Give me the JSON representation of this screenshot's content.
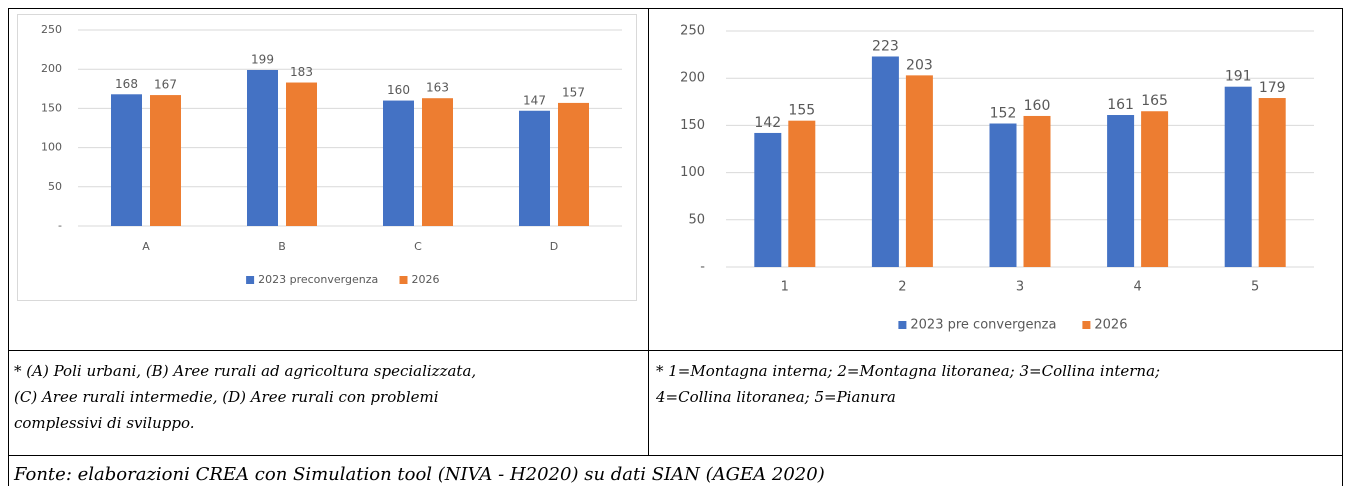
{
  "chart_data": [
    {
      "type": "bar",
      "categories": [
        "A",
        "B",
        "C",
        "D"
      ],
      "series": [
        {
          "name": "2023 preconvergenza",
          "color": "#4472c4",
          "values": [
            168,
            199,
            160,
            147
          ]
        },
        {
          "name": "2026",
          "color": "#ed7d31",
          "values": [
            167,
            183,
            163,
            157
          ]
        }
      ],
      "ylim": [
        0,
        250
      ],
      "yticks": [
        {
          "value": 0,
          "label": "-"
        },
        50,
        100,
        150,
        200,
        250
      ],
      "grid": true,
      "legend": "bottom"
    },
    {
      "type": "bar",
      "categories": [
        "1",
        "2",
        "3",
        "4",
        "5"
      ],
      "series": [
        {
          "name": "2023 pre convergenza",
          "color": "#4472c4",
          "values": [
            142,
            223,
            152,
            161,
            191
          ]
        },
        {
          "name": "2026",
          "color": "#ed7d31",
          "values": [
            155,
            203,
            160,
            165,
            179
          ]
        }
      ],
      "ylim": [
        0,
        250
      ],
      "yticks": [
        {
          "value": 0,
          "label": "-"
        },
        50,
        100,
        150,
        200,
        250
      ],
      "grid": true,
      "legend": "bottom"
    }
  ],
  "notes": [
    [
      "* (A) Poli urbani, (B) Aree rurali ad agricoltura specializzata,",
      "(C) Aree rurali intermedie, (D) Aree rurali con problemi",
      "complessivi di sviluppo."
    ],
    [
      "* 1=Montagna interna; 2=Montagna litoranea; 3=Collina interna;",
      "4=Collina litoranea; 5=Pianura"
    ]
  ],
  "source": "Fonte: elaborazioni CREA con Simulation tool (NIVA - H2020) su dati SIAN (AGEA 2020)"
}
